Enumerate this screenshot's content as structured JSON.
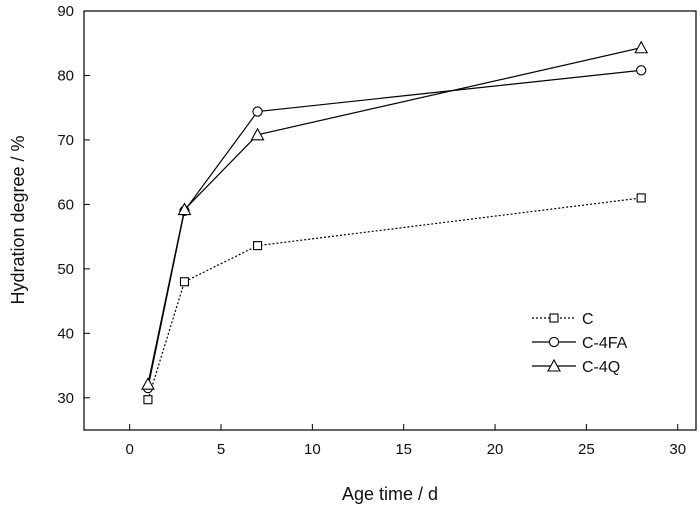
{
  "chart_data": {
    "type": "line",
    "title": "",
    "xlabel": "Age time / d",
    "ylabel": "Hydration degree / %",
    "xlim": [
      -2.5,
      31
    ],
    "ylim": [
      25,
      90
    ],
    "xticks": [
      0,
      5,
      10,
      15,
      20,
      25,
      30
    ],
    "yticks": [
      30,
      40,
      50,
      60,
      70,
      80,
      90
    ],
    "grid": false,
    "legend_position": "right",
    "series": [
      {
        "name": "C",
        "marker": "square",
        "line_style": "dotted",
        "color": "#000000",
        "x": [
          1,
          3,
          7,
          28
        ],
        "y": [
          29.7,
          48.0,
          53.6,
          61.0
        ]
      },
      {
        "name": "C-4FA",
        "marker": "circle",
        "line_style": "solid",
        "color": "#000000",
        "x": [
          1,
          3,
          7,
          28
        ],
        "y": [
          31.5,
          59.0,
          74.4,
          80.8
        ]
      },
      {
        "name": "C-4Q",
        "marker": "triangle",
        "line_style": "solid",
        "color": "#000000",
        "x": [
          1,
          3,
          7,
          28
        ],
        "y": [
          32.1,
          59.2,
          70.8,
          84.3
        ]
      }
    ]
  }
}
